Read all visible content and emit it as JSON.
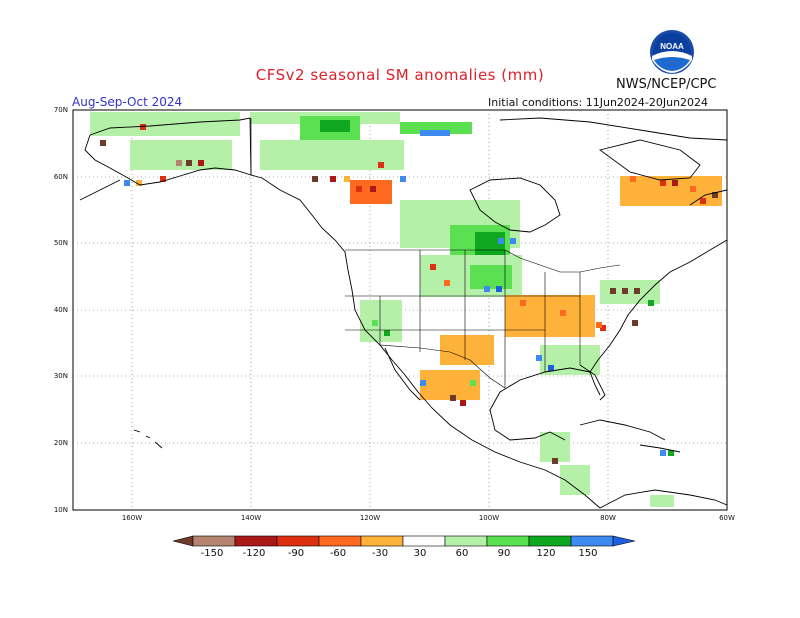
{
  "title": "CFSv2 seasonal SM anomalies (mm)",
  "agency": "NWS/NCEP/CPC",
  "season": "Aug-Sep-Oct 2024",
  "initial_conditions": "Initial conditions: 11Jun2024-20Jun2024",
  "lat_labels": [
    "70N",
    "60N",
    "50N",
    "40N",
    "30N",
    "20N",
    "10N"
  ],
  "lon_labels": [
    "160W",
    "140W",
    "120W",
    "100W",
    "80W",
    "60W"
  ],
  "colorbar": {
    "labels": [
      "-150",
      "-120",
      "-90",
      "-60",
      "-30",
      "30",
      "60",
      "90",
      "120",
      "150"
    ],
    "colors": [
      "#6e3a2a",
      "#b58470",
      "#aa1818",
      "#dd3010",
      "#ff6a20",
      "#ffb23a",
      "#ffffff",
      "#b4f0a8",
      "#5ae050",
      "#10a820",
      "#3d8af0",
      "#2060e0"
    ]
  },
  "colors": {
    "brown_dark": "#6e3a2a",
    "brown_light": "#b58470",
    "red_dark": "#aa1818",
    "red": "#dd3010",
    "orange": "#ff6a20",
    "orange_light": "#ffb23a",
    "green_light": "#b4f0a8",
    "green": "#5ae050",
    "green_dark": "#10a820",
    "blue_light": "#3d8af0",
    "blue": "#2060e0"
  },
  "logo_text": "NOAA"
}
